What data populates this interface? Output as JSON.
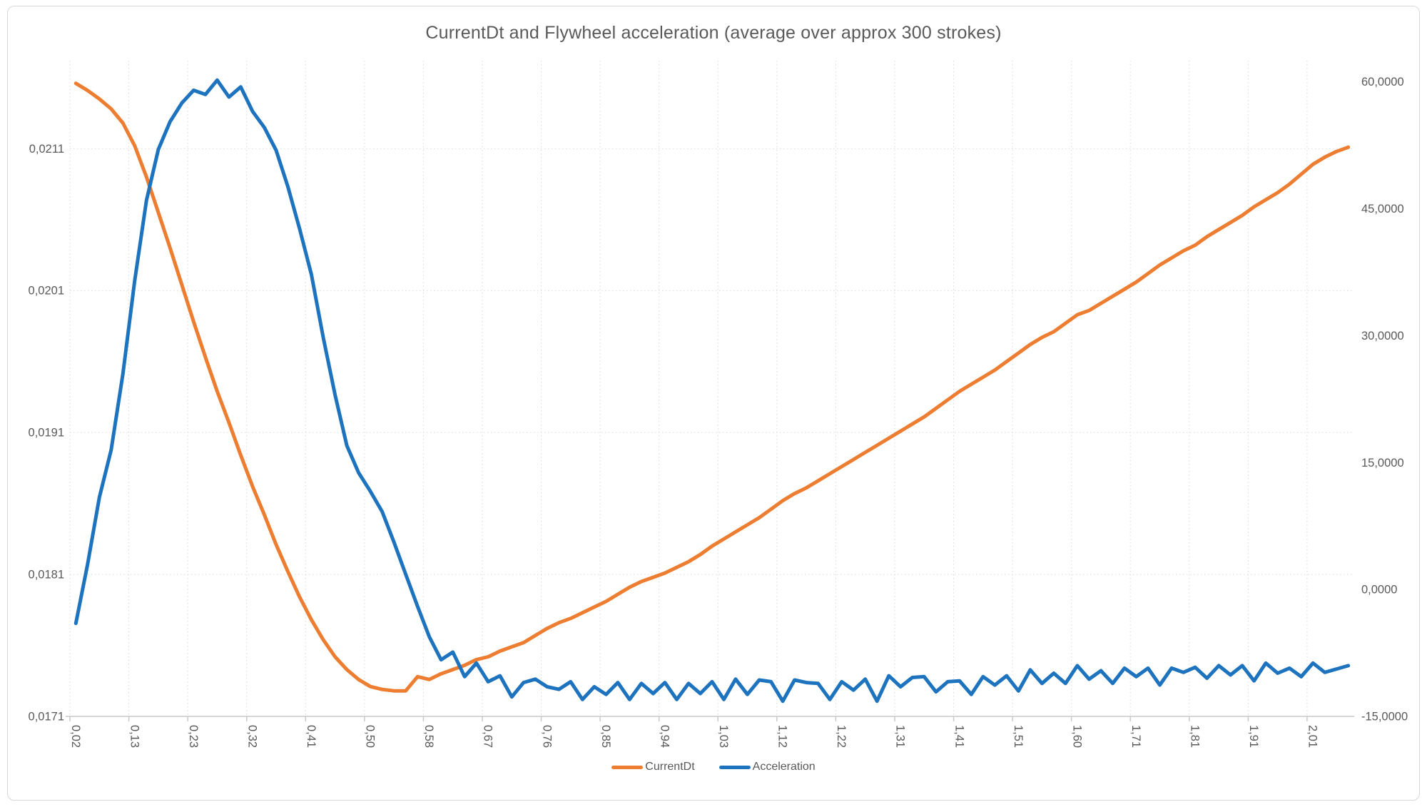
{
  "chart": {
    "title": "CurrentDt and Flywheel acceleration (average over approx 300 strokes)",
    "colors": {
      "currentdt": "#ED7D31",
      "acceleration": "#1E73BE",
      "gridline": "#D9D9D9",
      "axis_line": "#C9C9C9",
      "text": "#595959"
    }
  },
  "chart_data": {
    "type": "line",
    "title": "CurrentDt and Flywheel acceleration (average over approx 300 strokes)",
    "x_tick_labels": [
      "0,02",
      "0,13",
      "0,23",
      "0,32",
      "0,41",
      "0,50",
      "0,58",
      "0,67",
      "0,76",
      "0,85",
      "0,94",
      "1,03",
      "1,12",
      "1,22",
      "1,31",
      "1,41",
      "1,51",
      "1,60",
      "1,71",
      "1,81",
      "1,91",
      "2,01"
    ],
    "x_label_every_n_points": 5,
    "grid": "both-dotted",
    "legend_position": "bottom-center",
    "left_axis": {
      "min": 0.0171,
      "view_max": 0.02172,
      "ticks": [
        {
          "label": "0,0211",
          "value": 0.0211
        },
        {
          "label": "0,0201",
          "value": 0.0201
        },
        {
          "label": "0,0191",
          "value": 0.0191
        },
        {
          "label": "0,0181",
          "value": 0.0181
        },
        {
          "label": "0,0171",
          "value": 0.0171
        }
      ]
    },
    "right_axis": {
      "min": -15,
      "view_max": 62.5,
      "ticks": [
        {
          "label": "60,0000",
          "value": 60
        },
        {
          "label": "45,0000",
          "value": 45
        },
        {
          "label": "30,0000",
          "value": 30
        },
        {
          "label": "15,0000",
          "value": 15
        },
        {
          "label": "0,0000",
          "value": 0
        },
        {
          "label": "-15,0000",
          "value": -15
        }
      ]
    },
    "series": [
      {
        "name": "CurrentDt",
        "axis": "left",
        "color": "#ED7D31",
        "values": [
          0.02156,
          0.02151,
          0.02145,
          0.02138,
          0.02128,
          0.02112,
          0.0209,
          0.02065,
          0.0204,
          0.02014,
          0.01988,
          0.01963,
          0.01939,
          0.01917,
          0.01894,
          0.01872,
          0.01852,
          0.01831,
          0.01812,
          0.01794,
          0.01778,
          0.01764,
          0.01752,
          0.01743,
          0.01736,
          0.01731,
          0.01729,
          0.01728,
          0.01728,
          0.01738,
          0.01736,
          0.0174,
          0.01743,
          0.01746,
          0.0175,
          0.01752,
          0.01756,
          0.01759,
          0.01762,
          0.01767,
          0.01772,
          0.01776,
          0.01779,
          0.01783,
          0.01787,
          0.01791,
          0.01796,
          0.01801,
          0.01805,
          0.01808,
          0.01811,
          0.01815,
          0.01819,
          0.01824,
          0.0183,
          0.01835,
          0.0184,
          0.01845,
          0.0185,
          0.01856,
          0.01862,
          0.01867,
          0.01871,
          0.01876,
          0.01881,
          0.01886,
          0.01891,
          0.01896,
          0.01901,
          0.01906,
          0.01911,
          0.01916,
          0.01921,
          0.01927,
          0.01933,
          0.01939,
          0.01944,
          0.01949,
          0.01954,
          0.0196,
          0.01966,
          0.01972,
          0.01977,
          0.01981,
          0.01987,
          0.01993,
          0.01996,
          0.02001,
          0.02006,
          0.02011,
          0.02016,
          0.02022,
          0.02028,
          0.02033,
          0.02038,
          0.02042,
          0.02048,
          0.02053,
          0.02058,
          0.02063,
          0.02069,
          0.02074,
          0.02079,
          0.02085,
          0.02092,
          0.02099,
          0.02104,
          0.02108,
          0.02111
        ]
      },
      {
        "name": "Acceleration",
        "axis": "right",
        "color": "#1E73BE",
        "values": [
          -4.0,
          3.0,
          10.9,
          16.5,
          25.5,
          36.5,
          46.0,
          52.0,
          55.3,
          57.5,
          59.0,
          58.5,
          60.2,
          58.2,
          59.4,
          56.5,
          54.6,
          51.9,
          47.6,
          42.6,
          37.2,
          29.8,
          23.0,
          17.0,
          13.8,
          11.6,
          9.2,
          5.6,
          1.8,
          -2.0,
          -5.6,
          -8.3,
          -7.4,
          -10.3,
          -8.7,
          -10.9,
          -10.2,
          -12.7,
          -11.0,
          -10.6,
          -11.5,
          -11.8,
          -10.9,
          -13.0,
          -11.5,
          -12.4,
          -11.0,
          -13.0,
          -11.1,
          -12.3,
          -11.0,
          -13.0,
          -11.1,
          -12.3,
          -10.9,
          -13.0,
          -10.6,
          -12.4,
          -10.7,
          -10.9,
          -13.2,
          -10.7,
          -11.0,
          -11.1,
          -13.0,
          -10.9,
          -11.9,
          -10.6,
          -13.2,
          -10.2,
          -11.5,
          -10.4,
          -10.3,
          -12.1,
          -10.9,
          -10.8,
          -12.4,
          -10.3,
          -11.3,
          -10.2,
          -12.0,
          -9.5,
          -11.1,
          -9.9,
          -11.1,
          -9.0,
          -10.6,
          -9.6,
          -11.1,
          -9.3,
          -10.3,
          -9.3,
          -11.3,
          -9.3,
          -9.8,
          -9.2,
          -10.5,
          -9.0,
          -10.1,
          -9.0,
          -10.8,
          -8.7,
          -9.9,
          -9.3,
          -10.3,
          -8.7,
          -9.8,
          -9.4,
          -9.0
        ]
      }
    ]
  }
}
